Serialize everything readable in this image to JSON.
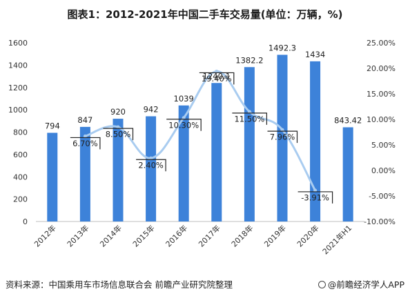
{
  "chart_data": {
    "type": "bar",
    "title": "图表1：2012-2021年中国二手车交易量(单位：万辆，%)",
    "categories": [
      "2012年",
      "2013年",
      "2014年",
      "2015年",
      "2016年",
      "2017年",
      "2018年",
      "2019年",
      "2020年",
      "2021年H1"
    ],
    "series": [
      {
        "type": "bar",
        "axis": "left",
        "color": "#3d82d9",
        "values": [
          794,
          847,
          920,
          942,
          1039,
          1240.1,
          1382.2,
          1492.3,
          1434,
          843.42
        ],
        "labels": [
          "794",
          "847",
          "920",
          "942",
          "1039",
          "1240.1",
          "1382.2",
          "1492.3",
          "1434",
          "843.42"
        ]
      },
      {
        "type": "line",
        "axis": "right",
        "color": "#a9ccf0",
        "values": [
          null,
          6.7,
          8.5,
          2.4,
          10.3,
          19.4,
          11.5,
          7.96,
          -3.91,
          null
        ],
        "labels": [
          "",
          "6.70%",
          "8.50%",
          "2.40%",
          "10.30%",
          "19.40%",
          "11.50%",
          "7.96%",
          "-3.91%",
          ""
        ]
      }
    ],
    "left_axis": {
      "ylim": [
        0,
        1600
      ],
      "ticks": [
        "0",
        "200",
        "400",
        "600",
        "800",
        "1000",
        "1200",
        "1400",
        "1600"
      ]
    },
    "right_axis": {
      "ylim": [
        -10,
        25
      ],
      "ticks": [
        "-10.00%",
        "-5.00%",
        "0.00%",
        "5.00%",
        "10.00%",
        "15.00%",
        "20.00%",
        "25.00%"
      ]
    },
    "grid": false,
    "legend": "none"
  },
  "footer": {
    "source": "资料来源：中国乘用车市场信息联合会 前瞻产业研究院整理",
    "brand": "@前瞻经济学人APP"
  }
}
